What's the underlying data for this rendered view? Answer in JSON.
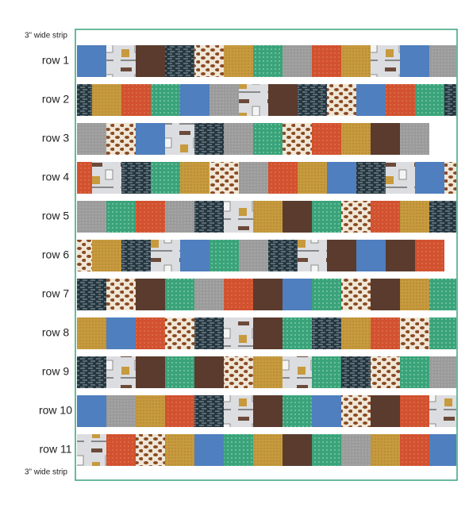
{
  "top_strip_label": "3” wide strip",
  "rows": [
    {
      "label": "row 1"
    },
    {
      "label": "row 2"
    },
    {
      "label": "row 3"
    },
    {
      "label": "row 4"
    },
    {
      "label": "row 5"
    },
    {
      "label": "row 6"
    },
    {
      "label": "row 7"
    },
    {
      "label": "row 8"
    },
    {
      "label": "row 9"
    },
    {
      "label": "row 10"
    },
    {
      "label": "row 11"
    }
  ],
  "bottom_strip_label": "3” wide strip"
}
